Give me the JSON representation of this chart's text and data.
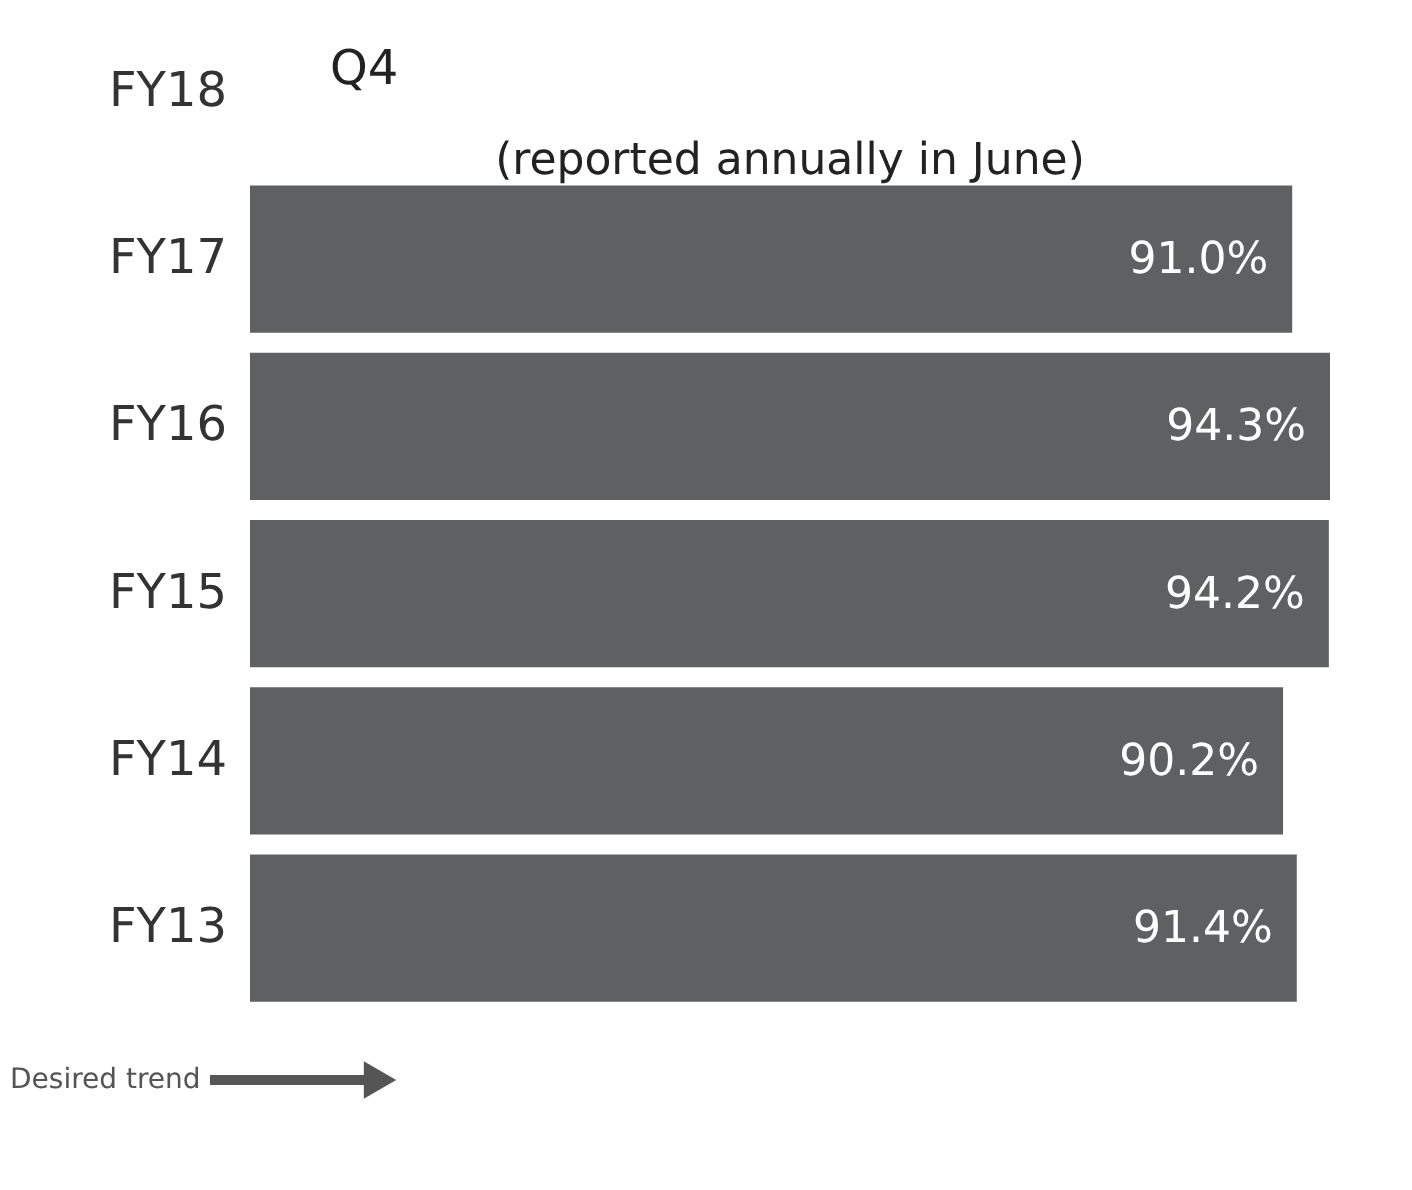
{
  "chart_data": {
    "type": "bar",
    "orientation": "horizontal",
    "categories": [
      "FY18",
      "FY17",
      "FY16",
      "FY15",
      "FY14",
      "FY13"
    ],
    "values": [
      null,
      91.0,
      94.3,
      94.2,
      90.2,
      91.4
    ],
    "value_labels": [
      null,
      "91.0%",
      "94.3%",
      "94.2%",
      "90.2%",
      "91.4%"
    ],
    "color": "#5f6062",
    "annotations": [
      "Q4",
      "(reported annually in June)",
      "Desired trend"
    ],
    "grid": false
  }
}
